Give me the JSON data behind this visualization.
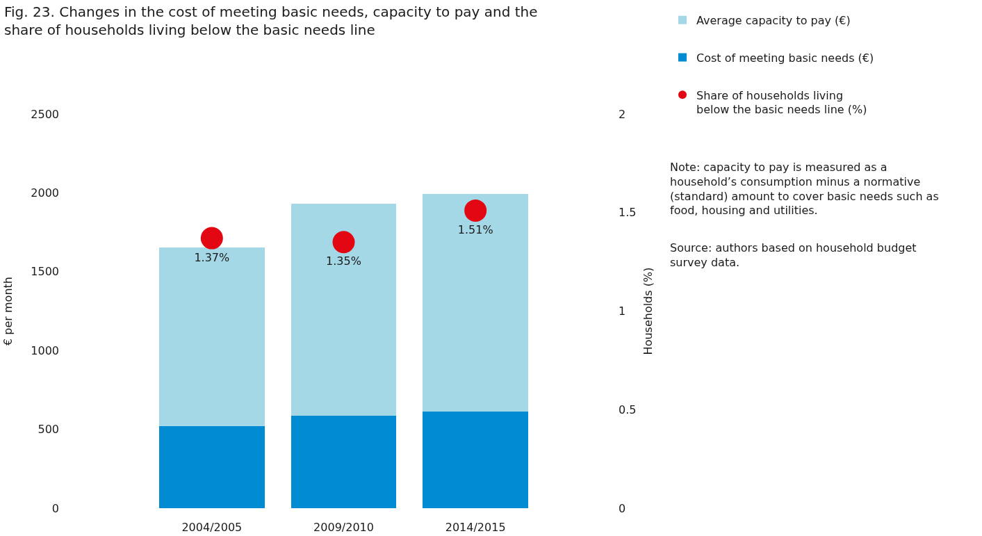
{
  "chart_data": {
    "type": "bar",
    "title": "Fig. 23. Changes in the cost of meeting basic needs, capacity to pay and the share of households living below the basic needs line",
    "ylabel": "€ per month",
    "y2label": "Households (%)",
    "categories": [
      "2004/2005",
      "2009/2010",
      "2014/2015"
    ],
    "stacked": true,
    "series": [
      {
        "name": "Cost of meeting basic needs (€)",
        "color": "#008bd2",
        "values": [
          520,
          585,
          615
        ]
      },
      {
        "name": "Average capacity to pay (€)",
        "color": "#a5d8e6",
        "values": [
          1135,
          1345,
          1380
        ]
      },
      {
        "name": "Share of households living below the basic needs line (%)",
        "type": "scatter",
        "axis": "y2",
        "color": "#e30613",
        "values": [
          1.37,
          1.35,
          1.51
        ],
        "value_labels": [
          "1.37%",
          "1.35%",
          "1.51%"
        ]
      }
    ],
    "ylim": [
      0,
      2500
    ],
    "yticks": [
      0,
      500,
      1000,
      1500,
      2000,
      2500
    ],
    "y2lim": [
      0,
      2
    ],
    "y2ticks": [
      0,
      0.5,
      1,
      1.5,
      2
    ],
    "legend": "top right",
    "marker": "circle",
    "annotations": [
      "Note: capacity to pay is measured as a household’s consumption minus a normative (standard) amount to cover basic needs such as food, housing and utilities.",
      "Source: authors based on household budget survey data."
    ]
  }
}
